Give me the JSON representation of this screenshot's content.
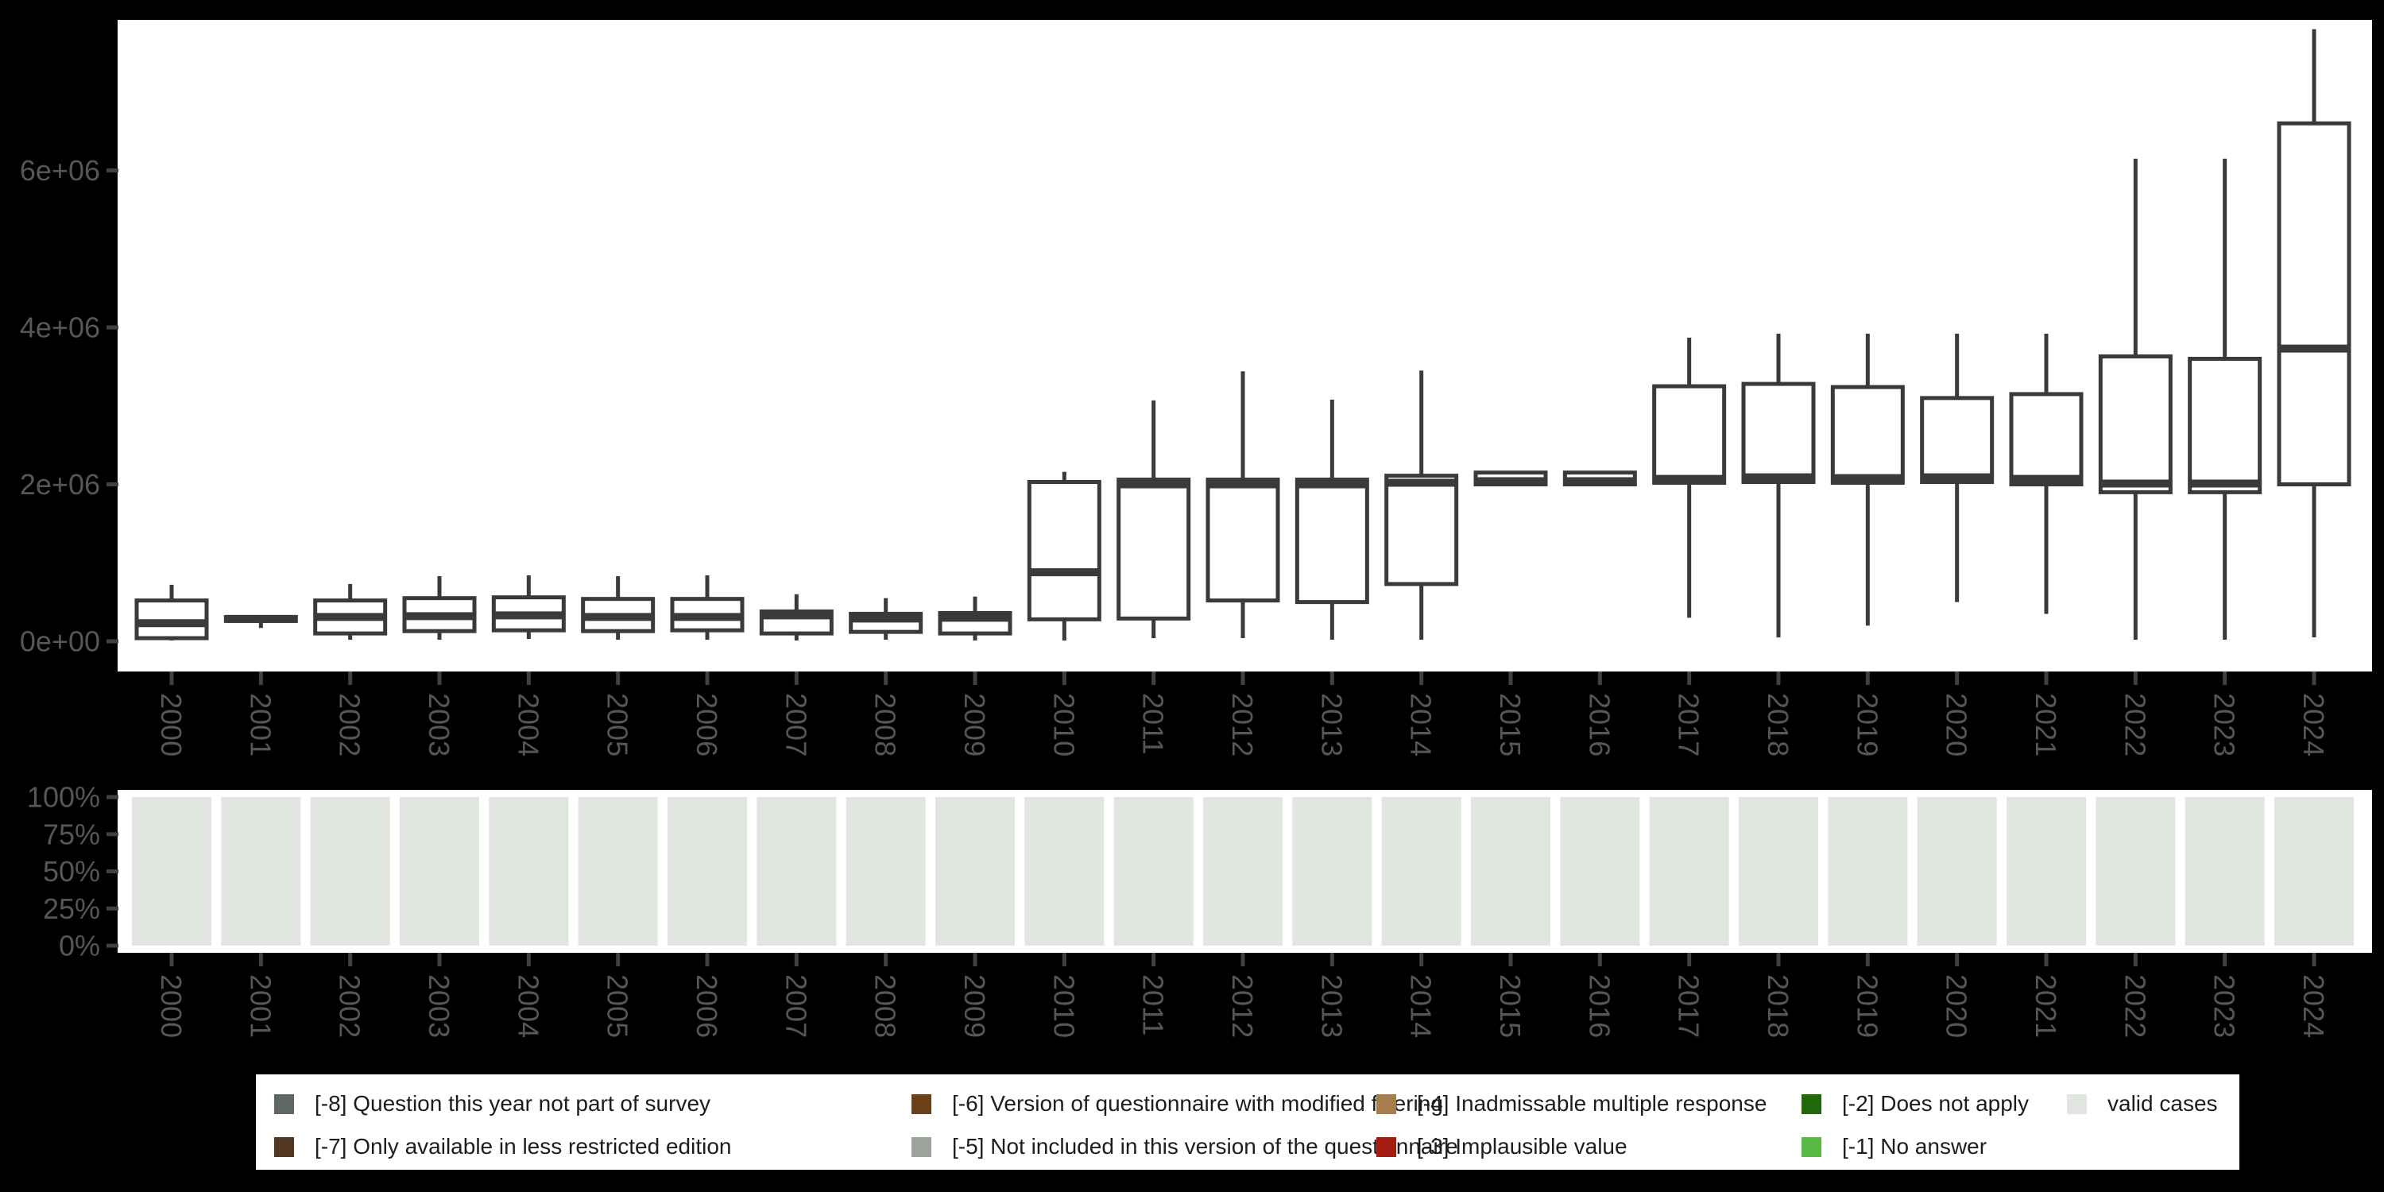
{
  "app": {
    "description": "Survey variable over time: distribution boxplots, share of valid cases, and missing-value legend"
  },
  "colors": {
    "background": "#000000",
    "panel": "#ffffff",
    "box_stroke": "#3a3a3a",
    "tick": "#404040",
    "axis_text": "#565656",
    "bar_fill": "#e2e6e0",
    "legend_text": "#1d1d1d",
    "legend_bg": "#ffffff"
  },
  "chart_data": [
    {
      "type": "boxplot",
      "title": "",
      "xlabel": "",
      "ylabel": "",
      "grid": false,
      "categories": [
        "2000",
        "2001",
        "2002",
        "2003",
        "2004",
        "2005",
        "2006",
        "2007",
        "2008",
        "2009",
        "2010",
        "2011",
        "2012",
        "2013",
        "2014",
        "2015",
        "2016",
        "2017",
        "2018",
        "2019",
        "2020",
        "2021",
        "2022",
        "2023",
        "2024"
      ],
      "stats": [
        {
          "year": "2000",
          "min": 10000,
          "q1": 40000,
          "median": 230000,
          "q3": 520000,
          "max": 720000
        },
        {
          "year": "2001",
          "min": 170000,
          "q1": 260000,
          "median": 285000,
          "q3": 310000,
          "max": 310000
        },
        {
          "year": "2002",
          "min": 20000,
          "q1": 100000,
          "median": 310000,
          "q3": 520000,
          "max": 730000
        },
        {
          "year": "2003",
          "min": 20000,
          "q1": 130000,
          "median": 320000,
          "q3": 550000,
          "max": 830000
        },
        {
          "year": "2004",
          "min": 30000,
          "q1": 140000,
          "median": 330000,
          "q3": 560000,
          "max": 840000
        },
        {
          "year": "2005",
          "min": 20000,
          "q1": 130000,
          "median": 310000,
          "q3": 540000,
          "max": 830000
        },
        {
          "year": "2006",
          "min": 20000,
          "q1": 140000,
          "median": 310000,
          "q3": 540000,
          "max": 840000
        },
        {
          "year": "2007",
          "min": 10000,
          "q1": 100000,
          "median": 330000,
          "q3": 380000,
          "max": 600000
        },
        {
          "year": "2008",
          "min": 20000,
          "q1": 120000,
          "median": 290000,
          "q3": 350000,
          "max": 550000
        },
        {
          "year": "2009",
          "min": 10000,
          "q1": 100000,
          "median": 300000,
          "q3": 360000,
          "max": 570000
        },
        {
          "year": "2010",
          "min": 10000,
          "q1": 280000,
          "median": 880000,
          "q3": 2030000,
          "max": 2160000
        },
        {
          "year": "2011",
          "min": 40000,
          "q1": 290000,
          "median": 2000000,
          "q3": 2060000,
          "max": 3070000
        },
        {
          "year": "2012",
          "min": 40000,
          "q1": 520000,
          "median": 2000000,
          "q3": 2060000,
          "max": 3440000
        },
        {
          "year": "2013",
          "min": 20000,
          "q1": 500000,
          "median": 2000000,
          "q3": 2060000,
          "max": 3080000
        },
        {
          "year": "2014",
          "min": 20000,
          "q1": 730000,
          "median": 2020000,
          "q3": 2110000,
          "max": 3450000
        },
        {
          "year": "2015",
          "min": 1980000,
          "q1": 2000000,
          "median": 2040000,
          "q3": 2150000,
          "max": 2150000
        },
        {
          "year": "2016",
          "min": 1980000,
          "q1": 2000000,
          "median": 2040000,
          "q3": 2150000,
          "max": 2150000
        },
        {
          "year": "2017",
          "min": 300000,
          "q1": 2020000,
          "median": 2070000,
          "q3": 3250000,
          "max": 3870000
        },
        {
          "year": "2018",
          "min": 50000,
          "q1": 2030000,
          "median": 2090000,
          "q3": 3280000,
          "max": 3920000
        },
        {
          "year": "2019",
          "min": 200000,
          "q1": 2020000,
          "median": 2080000,
          "q3": 3240000,
          "max": 3920000
        },
        {
          "year": "2020",
          "min": 500000,
          "q1": 2030000,
          "median": 2090000,
          "q3": 3100000,
          "max": 3920000
        },
        {
          "year": "2021",
          "min": 350000,
          "q1": 2000000,
          "median": 2070000,
          "q3": 3150000,
          "max": 3920000
        },
        {
          "year": "2022",
          "min": 20000,
          "q1": 1900000,
          "median": 2010000,
          "q3": 3630000,
          "max": 6150000
        },
        {
          "year": "2023",
          "min": 20000,
          "q1": 1900000,
          "median": 2010000,
          "q3": 3600000,
          "max": 6150000
        },
        {
          "year": "2024",
          "min": 50000,
          "q1": 2000000,
          "median": 3730000,
          "q3": 6600000,
          "max": 7800000
        }
      ],
      "yticks": {
        "values": [
          0,
          2000000,
          4000000,
          6000000
        ],
        "labels": [
          "0e+00",
          "2e+06",
          "4e+06",
          "6e+06"
        ]
      },
      "ylim": [
        0,
        7920000
      ]
    },
    {
      "type": "bar",
      "title": "",
      "stacked": true,
      "grid": false,
      "categories": [
        "2000",
        "2001",
        "2002",
        "2003",
        "2004",
        "2005",
        "2006",
        "2007",
        "2008",
        "2009",
        "2010",
        "2011",
        "2012",
        "2013",
        "2014",
        "2015",
        "2016",
        "2017",
        "2018",
        "2019",
        "2020",
        "2021",
        "2022",
        "2023",
        "2024"
      ],
      "series": [
        {
          "name": "valid cases",
          "color": "#e2e6e0",
          "values": [
            100,
            100,
            100,
            100,
            100,
            100,
            100,
            100,
            100,
            100,
            100,
            100,
            100,
            100,
            100,
            100,
            100,
            100,
            100,
            100,
            100,
            100,
            100,
            100,
            100
          ]
        }
      ],
      "yticks": {
        "values": [
          0,
          25,
          50,
          75,
          100
        ],
        "labels": [
          "0%",
          "25%",
          "50%",
          "75%",
          "100%"
        ]
      },
      "ylim": [
        0,
        100
      ]
    }
  ],
  "legend": {
    "position": "bottom",
    "items": [
      {
        "key": "neg8",
        "label": "[-8] Question this year not part of survey",
        "color": "#5f6763"
      },
      {
        "key": "neg7",
        "label": "[-7] Only available in less restricted edition",
        "color": "#53361f"
      },
      {
        "key": "neg6",
        "label": "[-6] Version of questionnaire with modified filtering",
        "color": "#6b4119"
      },
      {
        "key": "neg5",
        "label": "[-5] Not included in this version of the questionnaire",
        "color": "#9ba39a"
      },
      {
        "key": "neg4",
        "label": "[-4] Inadmissable multiple response",
        "color": "#a67e4e"
      },
      {
        "key": "neg3",
        "label": "[-3] Implausible value",
        "color": "#a51d11"
      },
      {
        "key": "neg2",
        "label": "[-2] Does not apply",
        "color": "#20690a"
      },
      {
        "key": "neg1",
        "label": "[-1] No answer",
        "color": "#58ba45"
      },
      {
        "key": "valid",
        "label": "valid cases",
        "color": "#e2e6e0"
      }
    ]
  }
}
